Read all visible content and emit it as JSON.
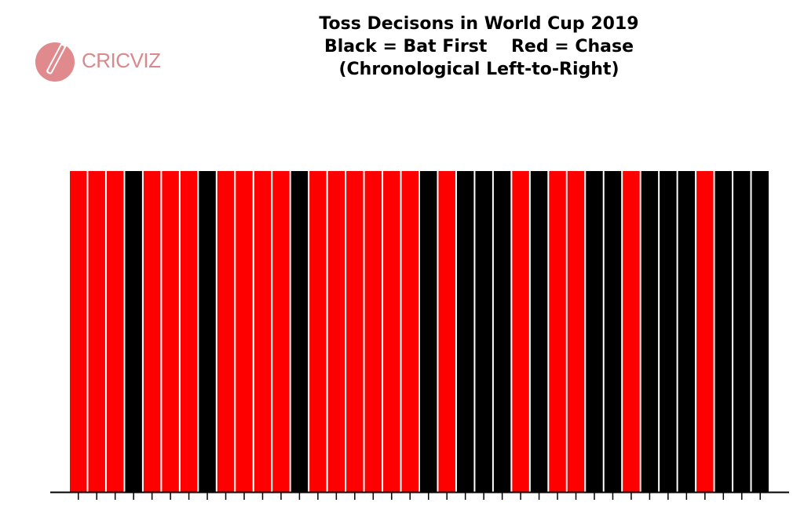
{
  "brand": {
    "name_part1": "CRIC",
    "name_part2": "VIZ",
    "logo_color": "#e08a8d"
  },
  "chart_data": {
    "type": "bar",
    "title_lines": [
      "Toss Decisons in World Cup 2019",
      "Black = Bat First    Red = Chase",
      "(Chronological Left-to-Right)"
    ],
    "legend": [
      {
        "label": "Bat First",
        "color": "#000000"
      },
      {
        "label": "Chase",
        "color": "#ff0000"
      }
    ],
    "xlabel": "",
    "ylabel": "",
    "ylim": [
      0,
      1
    ],
    "grid": false,
    "value_per_match": 1,
    "colors": {
      "Bat First": "#000000",
      "Chase": "#ff0000"
    },
    "decisions": [
      "Chase",
      "Chase",
      "Chase",
      "Bat First",
      "Chase",
      "Chase",
      "Chase",
      "Bat First",
      "Chase",
      "Chase",
      "Chase",
      "Chase",
      "Bat First",
      "Chase",
      "Chase",
      "Chase",
      "Chase",
      "Chase",
      "Chase",
      "Bat First",
      "Chase",
      "Bat First",
      "Bat First",
      "Bat First",
      "Chase",
      "Bat First",
      "Chase",
      "Chase",
      "Bat First",
      "Bat First",
      "Chase",
      "Bat First",
      "Bat First",
      "Bat First",
      "Chase",
      "Bat First",
      "Bat First",
      "Bat First"
    ]
  }
}
